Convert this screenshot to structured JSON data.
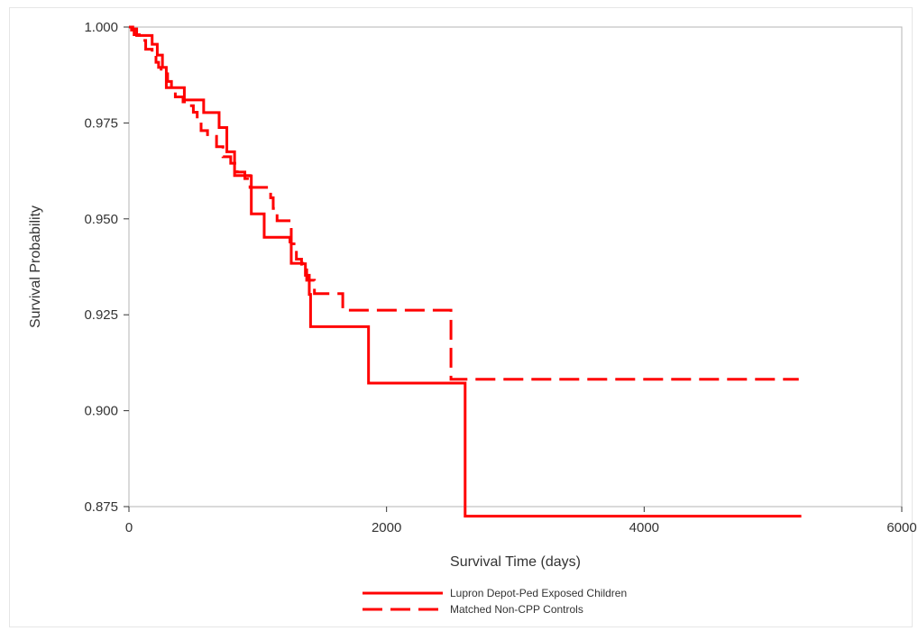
{
  "chart_data": {
    "type": "line",
    "title": "",
    "xlabel": "Survival Time (days)",
    "ylabel": "Survival Probability",
    "xlim": [
      0,
      6000
    ],
    "ylim": [
      0.875,
      1.0
    ],
    "x_ticks": [
      "0",
      "2000",
      "4000",
      "6000"
    ],
    "x_tick_values": [
      0,
      2000,
      4000,
      6000
    ],
    "y_ticks": [
      "0.875",
      "0.900",
      "0.925",
      "0.950",
      "0.975",
      "1.000"
    ],
    "y_tick_values": [
      0.875,
      0.9,
      0.925,
      0.95,
      0.975,
      1.0
    ],
    "grid": false,
    "legend_placement": "bottom",
    "step": true,
    "series": [
      {
        "name": "Lupron Depot-Ped Exposed Children",
        "color": "#ff0000",
        "dash": "solid",
        "x": [
          0,
          30,
          60,
          180,
          220,
          260,
          290,
          430,
          580,
          700,
          760,
          820,
          940,
          950,
          1050,
          1250,
          1260,
          1350,
          1370,
          1400,
          1410,
          1850,
          1860,
          2600,
          2610,
          5220
        ],
        "y": [
          1.0,
          0.9995,
          0.9978,
          0.9955,
          0.9927,
          0.9895,
          0.9842,
          0.981,
          0.9777,
          0.9738,
          0.9675,
          0.9613,
          0.9612,
          0.9513,
          0.9452,
          0.944,
          0.9384,
          0.9383,
          0.9353,
          0.9303,
          0.9219,
          0.9219,
          0.9072,
          0.9072,
          0.8725,
          0.8725
        ]
      },
      {
        "name": "Matched Non-CPP Controls",
        "color": "#ff0000",
        "dash": "dashed",
        "x": [
          0,
          20,
          40,
          80,
          130,
          180,
          210,
          230,
          250,
          300,
          330,
          360,
          420,
          470,
          500,
          530,
          560,
          610,
          680,
          730,
          790,
          840,
          900,
          940,
          1000,
          1080,
          1100,
          1120,
          1150,
          1230,
          1260,
          1300,
          1340,
          1380,
          1440,
          1660,
          1700,
          2480,
          2500,
          5200
        ],
        "y": [
          1.0,
          0.9992,
          0.998,
          0.9965,
          0.9942,
          0.9925,
          0.9908,
          0.9895,
          0.9878,
          0.9858,
          0.9838,
          0.9818,
          0.9805,
          0.9795,
          0.9778,
          0.9755,
          0.973,
          0.9715,
          0.9688,
          0.9662,
          0.9645,
          0.9622,
          0.9605,
          0.9582,
          0.9582,
          0.9582,
          0.9555,
          0.9527,
          0.9495,
          0.9495,
          0.9435,
          0.9395,
          0.9375,
          0.934,
          0.9305,
          0.9262,
          0.9262,
          0.9262,
          0.9082,
          0.9082
        ]
      }
    ]
  }
}
